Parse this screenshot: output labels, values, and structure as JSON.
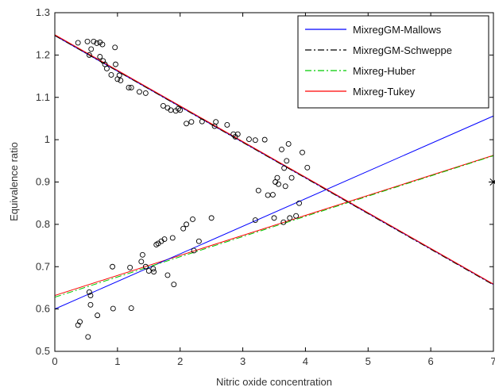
{
  "chart_data": {
    "type": "scatter",
    "title": "",
    "xlabel": "Nitric oxide concentration",
    "ylabel": "Equivalence ratio",
    "xlim": [
      0,
      7
    ],
    "ylim": [
      0.5,
      1.3
    ],
    "xticks": [
      "0",
      "1",
      "2",
      "3",
      "4",
      "5",
      "6",
      "7"
    ],
    "yticks": [
      "0.5",
      "0.6",
      "0.7",
      "0.8",
      "0.9",
      "1",
      "1.1",
      "1.2",
      "1.3"
    ],
    "grid": false,
    "legend_position": "top-right",
    "scatter_points": [
      [
        0.37,
        1.229
      ],
      [
        0.52,
        1.232
      ],
      [
        0.58,
        1.214
      ],
      [
        0.62,
        1.232
      ],
      [
        0.67,
        1.228
      ],
      [
        0.72,
        1.23
      ],
      [
        0.76,
        1.225
      ],
      [
        0.55,
        1.2
      ],
      [
        0.72,
        1.196
      ],
      [
        0.77,
        1.186
      ],
      [
        0.8,
        1.178
      ],
      [
        0.83,
        1.168
      ],
      [
        0.9,
        1.153
      ],
      [
        0.97,
        1.178
      ],
      [
        1.0,
        1.143
      ],
      [
        1.03,
        1.152
      ],
      [
        1.05,
        1.14
      ],
      [
        1.18,
        1.123
      ],
      [
        1.22,
        1.123
      ],
      [
        0.96,
        1.218
      ],
      [
        1.35,
        1.113
      ],
      [
        1.45,
        1.11
      ],
      [
        1.73,
        1.08
      ],
      [
        1.8,
        1.075
      ],
      [
        1.85,
        1.07
      ],
      [
        1.93,
        1.068
      ],
      [
        1.97,
        1.073
      ],
      [
        2.0,
        1.07
      ],
      [
        2.1,
        1.038
      ],
      [
        2.18,
        1.042
      ],
      [
        2.35,
        1.043
      ],
      [
        2.55,
        1.032
      ],
      [
        2.57,
        1.042
      ],
      [
        2.75,
        1.035
      ],
      [
        2.85,
        1.013
      ],
      [
        2.88,
        1.007
      ],
      [
        2.92,
        1.013
      ],
      [
        3.1,
        1.001
      ],
      [
        3.2,
        0.999
      ],
      [
        3.35,
        1.0
      ],
      [
        3.25,
        0.88
      ],
      [
        3.4,
        0.869
      ],
      [
        3.48,
        0.87
      ],
      [
        3.52,
        0.9
      ],
      [
        3.55,
        0.91
      ],
      [
        3.57,
        0.895
      ],
      [
        3.62,
        0.977
      ],
      [
        3.68,
        0.89
      ],
      [
        3.7,
        0.95
      ],
      [
        3.73,
        0.99
      ],
      [
        3.66,
        0.933
      ],
      [
        3.78,
        0.91
      ],
      [
        3.9,
        0.85
      ],
      [
        3.95,
        0.97
      ],
      [
        4.03,
        0.934
      ],
      [
        3.5,
        0.815
      ],
      [
        3.65,
        0.805
      ],
      [
        3.75,
        0.815
      ],
      [
        3.85,
        0.82
      ],
      [
        3.2,
        0.81
      ],
      [
        0.37,
        0.562
      ],
      [
        0.4,
        0.57
      ],
      [
        0.53,
        0.534
      ],
      [
        0.57,
        0.632
      ],
      [
        0.55,
        0.64
      ],
      [
        0.57,
        0.61
      ],
      [
        0.68,
        0.585
      ],
      [
        0.92,
        0.7
      ],
      [
        0.93,
        0.601
      ],
      [
        1.2,
        0.698
      ],
      [
        1.22,
        0.602
      ],
      [
        1.38,
        0.712
      ],
      [
        1.4,
        0.728
      ],
      [
        1.45,
        0.7
      ],
      [
        1.5,
        0.69
      ],
      [
        1.57,
        0.695
      ],
      [
        1.58,
        0.688
      ],
      [
        1.62,
        0.752
      ],
      [
        1.65,
        0.755
      ],
      [
        1.7,
        0.76
      ],
      [
        1.75,
        0.765
      ],
      [
        1.8,
        0.68
      ],
      [
        1.88,
        0.768
      ],
      [
        1.9,
        0.658
      ],
      [
        2.05,
        0.79
      ],
      [
        2.1,
        0.8
      ],
      [
        2.2,
        0.812
      ],
      [
        2.22,
        0.738
      ],
      [
        2.3,
        0.76
      ],
      [
        2.5,
        0.815
      ]
    ],
    "outlier_point": [
      7.0,
      0.9
    ],
    "series": [
      {
        "name": "MixregGM-Mallows",
        "color": "#0000ff",
        "style": "solid",
        "line": [
          [
            0,
            0.6
          ],
          [
            7,
            1.056
          ]
        ]
      },
      {
        "name": "MixregGM-Schweppe",
        "color": "#000000",
        "style": "dashdot",
        "line": [
          [
            0,
            1.246
          ],
          [
            7,
            0.657
          ]
        ]
      },
      {
        "name": "Mixreg-Huber",
        "color": "#00cc00",
        "style": "dashdot",
        "line": [
          [
            0,
            0.628
          ],
          [
            7,
            0.962
          ]
        ]
      },
      {
        "name": "Mixreg-Tukey",
        "color": "#ff0000",
        "style": "solid",
        "line": [
          [
            0,
            1.248
          ],
          [
            7,
            0.659
          ]
        ]
      }
    ],
    "extra_lines": [
      {
        "color": "#ff0000",
        "style": "solid",
        "line": [
          [
            0,
            0.632
          ],
          [
            7,
            0.963
          ]
        ]
      },
      {
        "color": "#0000ff",
        "style": "solid",
        "line": [
          [
            0,
            1.246
          ],
          [
            7,
            0.658
          ]
        ]
      }
    ]
  }
}
